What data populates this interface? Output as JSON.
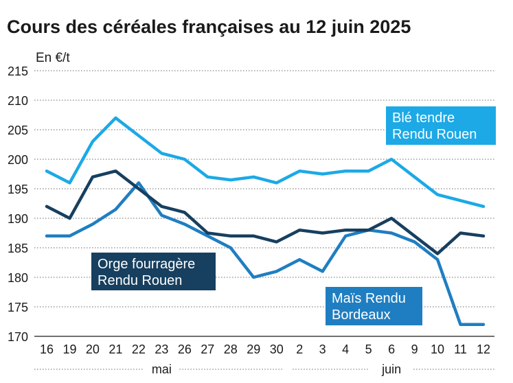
{
  "chart_data": {
    "type": "line",
    "title": "Cours des céréales françaises au 12 juin 2025",
    "ylabel": "En €/t",
    "xlabel": "",
    "ylim": [
      170,
      215
    ],
    "yticks": [
      170,
      175,
      180,
      185,
      190,
      195,
      200,
      205,
      210,
      215
    ],
    "grid": true,
    "categories": [
      "16",
      "19",
      "20",
      "21",
      "22",
      "23",
      "26",
      "27",
      "28",
      "29",
      "30",
      "2",
      "3",
      "4",
      "5",
      "6",
      "9",
      "10",
      "11",
      "12"
    ],
    "month_groups": [
      {
        "label": "mai",
        "start": 0,
        "end": 10
      },
      {
        "label": "juin",
        "start": 11,
        "end": 19
      }
    ],
    "series": [
      {
        "name": "Blé tendre Rendu Rouen",
        "label_lines": [
          "Blé tendre",
          "Rendu Rouen"
        ],
        "color": "#1ca9e6",
        "values": [
          198,
          196,
          203,
          207,
          204,
          201,
          200,
          197,
          196.5,
          197,
          196,
          198,
          197.5,
          198,
          198,
          200,
          197,
          194,
          193,
          192
        ]
      },
      {
        "name": "Orge fourragère Rendu Rouen",
        "label_lines": [
          "Orge fourragère",
          "Rendu Rouen"
        ],
        "color": "#173f5f",
        "values": [
          192,
          190,
          197,
          198,
          195,
          192,
          191,
          187.5,
          187,
          187,
          186,
          188,
          187.5,
          188,
          188,
          190,
          187,
          184,
          187.5,
          187
        ]
      },
      {
        "name": "Maïs Rendu Bordeaux",
        "label_lines": [
          "Maïs Rendu",
          "Bordeaux"
        ],
        "color": "#1f7ec1",
        "values": [
          187,
          187,
          189,
          191.5,
          196,
          190.5,
          189,
          187,
          185,
          180,
          181,
          183,
          181,
          187,
          188,
          187.5,
          186,
          183,
          172,
          172
        ]
      }
    ]
  }
}
